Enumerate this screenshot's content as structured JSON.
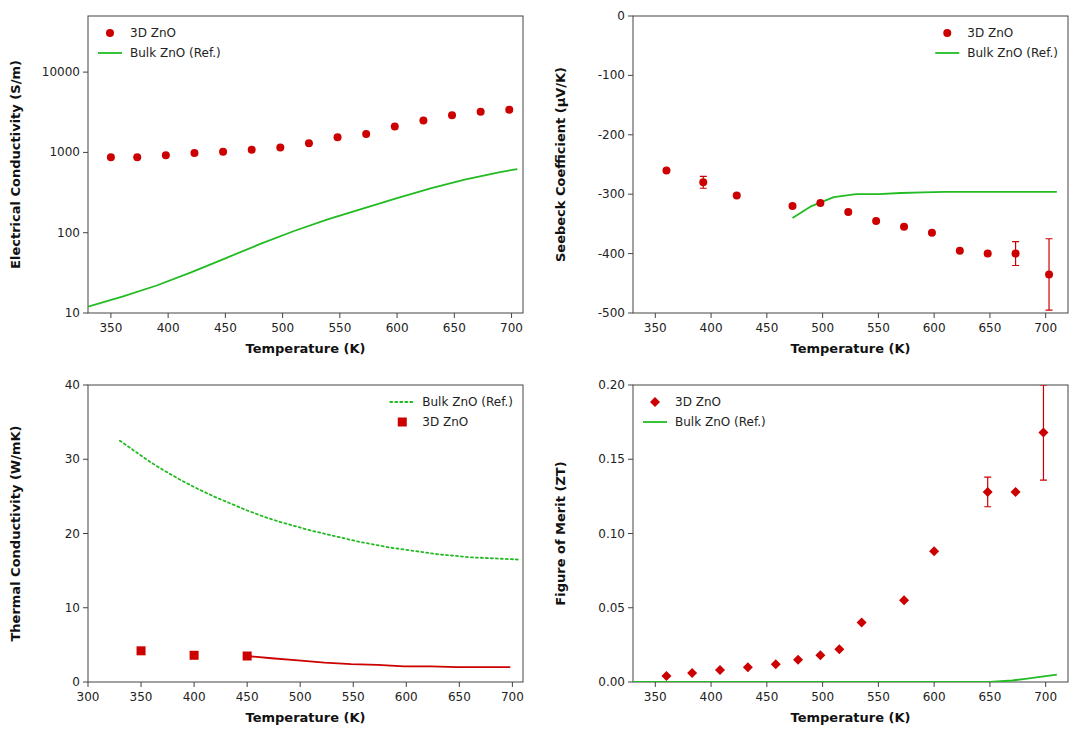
{
  "chart_data": [
    {
      "type": "line",
      "x_label": "Temperature (K)",
      "y_label": "Electrical Conductivity (S/m)",
      "log": "y",
      "xlim": [
        330,
        710
      ],
      "ylim": [
        10,
        50000
      ],
      "xticks": [
        350,
        400,
        450,
        500,
        550,
        600,
        650,
        700
      ],
      "yticks": [
        10,
        100,
        1000,
        10000
      ],
      "grid": false,
      "legend": "upper left",
      "series": [
        {
          "name": "3D ZnO",
          "type": "scatter",
          "marker": "circle",
          "color": "#CC0000",
          "x": [
            350,
            373,
            398,
            423,
            448,
            473,
            498,
            523,
            548,
            573,
            598,
            623,
            648,
            673,
            698
          ],
          "values": [
            870,
            870,
            920,
            980,
            1020,
            1080,
            1150,
            1300,
            1550,
            1700,
            2100,
            2500,
            2900,
            3200,
            3400
          ]
        },
        {
          "name": "Bulk ZnO (Ref.)",
          "type": "line",
          "line_style": "solid",
          "color": "#22BB22",
          "x": [
            330,
            360,
            390,
            420,
            450,
            480,
            510,
            540,
            570,
            600,
            630,
            660,
            690,
            705
          ],
          "values": [
            12,
            16,
            22,
            32,
            48,
            72,
            105,
            148,
            200,
            270,
            360,
            460,
            570,
            620
          ]
        }
      ]
    },
    {
      "type": "line",
      "x_label": "Temperature (K)",
      "y_label": "Seebeck Coefficient (μV/K)",
      "xlim": [
        330,
        720
      ],
      "ylim": [
        -500,
        0
      ],
      "xticks": [
        350,
        400,
        450,
        500,
        550,
        600,
        650,
        700
      ],
      "yticks": [
        0,
        -100,
        -200,
        -300,
        -400,
        -500
      ],
      "grid": false,
      "legend": "upper right",
      "series": [
        {
          "name": "3D ZnO",
          "type": "scatter",
          "marker": "circle",
          "color": "#CC0000",
          "x": [
            360,
            393,
            423,
            473,
            498,
            523,
            548,
            573,
            598,
            623,
            648,
            673,
            703
          ],
          "values": [
            -260,
            -280,
            -302,
            -320,
            -315,
            -330,
            -345,
            -355,
            -365,
            -395,
            -400,
            -400,
            -435
          ],
          "errors": [
            0,
            10,
            0,
            0,
            0,
            0,
            0,
            0,
            0,
            0,
            0,
            20,
            60
          ]
        },
        {
          "name": "Bulk ZnO (Ref.)",
          "type": "line",
          "line_style": "solid",
          "color": "#22BB22",
          "x": [
            473,
            490,
            510,
            530,
            550,
            570,
            590,
            610,
            630,
            650,
            670,
            690,
            710
          ],
          "values": [
            -340,
            -320,
            -305,
            -300,
            -300,
            -298,
            -297,
            -296,
            -296,
            -296,
            -296,
            -296,
            -296
          ]
        }
      ]
    },
    {
      "type": "line",
      "x_label": "Temperature (K)",
      "y_label": "Thermal Conductivity (W/mK)",
      "xlim": [
        300,
        710
      ],
      "ylim": [
        0,
        40
      ],
      "xticks": [
        300,
        350,
        400,
        450,
        500,
        550,
        600,
        650,
        700
      ],
      "yticks": [
        0,
        10,
        20,
        30,
        40
      ],
      "grid": false,
      "legend": "upper right",
      "series": [
        {
          "name": "Bulk ZnO (Ref.)",
          "type": "line",
          "line_style": "dotted",
          "color": "#22BB22",
          "x": [
            330,
            345,
            360,
            375,
            390,
            405,
            420,
            435,
            450,
            465,
            480,
            495,
            510,
            525,
            540,
            555,
            570,
            585,
            600,
            615,
            630,
            645,
            660,
            675,
            690,
            705
          ],
          "values": [
            32.5,
            31.0,
            29.5,
            28.2,
            27.0,
            25.9,
            24.9,
            24.0,
            23.1,
            22.3,
            21.6,
            21.0,
            20.4,
            19.9,
            19.4,
            18.9,
            18.5,
            18.1,
            17.8,
            17.5,
            17.2,
            17.0,
            16.8,
            16.7,
            16.6,
            16.5
          ]
        },
        {
          "name": "3D ZnO",
          "type": "scatter",
          "marker": "square",
          "color": "#CC0000",
          "x": [
            350,
            400,
            450
          ],
          "values": [
            4.2,
            3.6,
            3.5
          ]
        },
        {
          "type": "line",
          "line_style": "solid",
          "color": "#CC0000",
          "x": [
            450,
            473,
            498,
            523,
            548,
            573,
            598,
            623,
            648,
            673,
            698
          ],
          "values": [
            3.5,
            3.2,
            2.9,
            2.6,
            2.4,
            2.3,
            2.1,
            2.1,
            2.0,
            2.0,
            2.0
          ]
        }
      ]
    },
    {
      "type": "line",
      "x_label": "Temperature (K)",
      "y_label": "Figure of Merit (ZT)",
      "xlim": [
        330,
        720
      ],
      "ylim": [
        0,
        0.2
      ],
      "xticks": [
        350,
        400,
        450,
        500,
        550,
        600,
        650,
        700
      ],
      "yticks": [
        {
          "value": 0,
          "label": "0.00"
        },
        0.05,
        {
          "value": 0.1,
          "label": "0.10"
        },
        0.15,
        {
          "value": 0.2,
          "label": "0.20"
        }
      ],
      "grid": false,
      "legend": "upper left",
      "series": [
        {
          "name": "3D ZnO",
          "type": "scatter",
          "marker": "diamond",
          "color": "#CC0000",
          "x": [
            360,
            383,
            408,
            433,
            458,
            478,
            498,
            515,
            535,
            573,
            600,
            648,
            673,
            698
          ],
          "values": [
            0.004,
            0.006,
            0.008,
            0.01,
            0.012,
            0.015,
            0.018,
            0.022,
            0.04,
            0.055,
            0.088,
            0.128,
            0.128,
            0.168
          ],
          "errors": [
            0,
            0,
            0,
            0,
            0,
            0,
            0,
            0,
            0,
            0,
            0,
            0.01,
            0,
            0.032
          ]
        },
        {
          "name": "Bulk ZnO (Ref.)",
          "type": "line",
          "line_style": "solid",
          "color": "#22BB22",
          "x": [
            330,
            400,
            450,
            500,
            550,
            600,
            650,
            670,
            680,
            690,
            700,
            710
          ],
          "values": [
            0.0,
            0.0,
            0.0,
            0.0,
            0.0,
            0.0,
            0.0,
            0.001,
            0.002,
            0.003,
            0.004,
            0.005
          ]
        }
      ]
    }
  ]
}
